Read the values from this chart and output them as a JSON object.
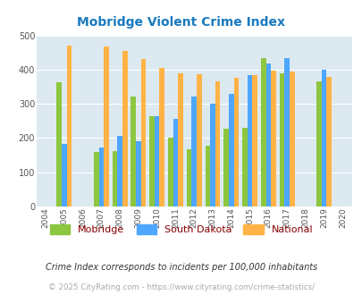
{
  "title": "Mobridge Violent Crime Index",
  "years": [
    2005,
    2007,
    2008,
    2009,
    2010,
    2011,
    2012,
    2013,
    2014,
    2015,
    2016,
    2017,
    2019
  ],
  "mobridge": [
    363,
    160,
    162,
    322,
    265,
    202,
    168,
    177,
    228,
    229,
    434,
    390,
    366
  ],
  "south_dakota": [
    182,
    172,
    206,
    190,
    265,
    255,
    321,
    301,
    329,
    384,
    418,
    434,
    399
  ],
  "national": [
    469,
    467,
    455,
    432,
    405,
    388,
    387,
    367,
    377,
    383,
    397,
    394,
    379
  ],
  "xlim": [
    2003.5,
    2020.5
  ],
  "ylim": [
    0,
    500
  ],
  "yticks": [
    0,
    100,
    200,
    300,
    400,
    500
  ],
  "xticks": [
    2004,
    2005,
    2006,
    2007,
    2008,
    2009,
    2010,
    2011,
    2012,
    2013,
    2014,
    2015,
    2016,
    2017,
    2018,
    2019,
    2020
  ],
  "color_mobridge": "#8dc63f",
  "color_sd": "#4da6ff",
  "color_national": "#ffb347",
  "bg_color": "#dce9f0",
  "grid_color": "#ffffff",
  "bar_width": 0.27,
  "legend_labels": [
    "Mobridge",
    "South Dakota",
    "National"
  ],
  "footnote1": "Crime Index corresponds to incidents per 100,000 inhabitants",
  "footnote2": "© 2025 CityRating.com - https://www.cityrating.com/crime-statistics/"
}
